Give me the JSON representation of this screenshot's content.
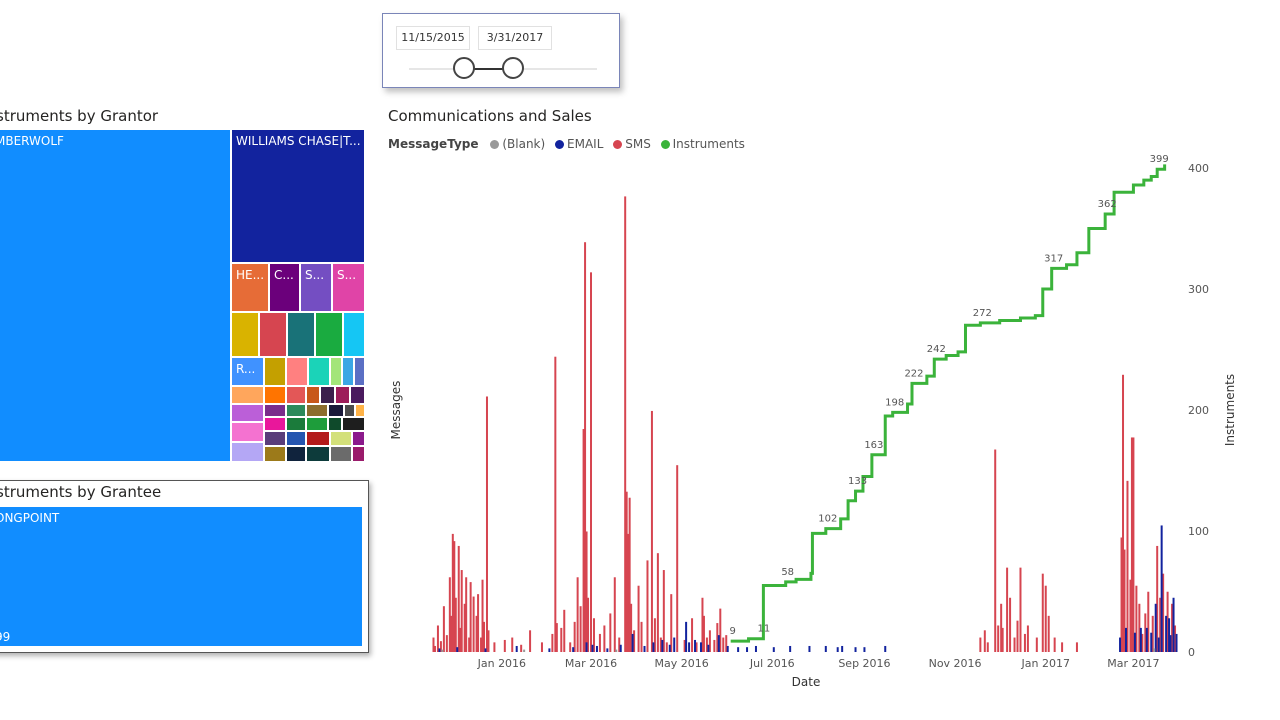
{
  "slicer": {
    "start_date": "11/15/2015",
    "end_date": "3/31/2017"
  },
  "grantor_treemap": {
    "title": "struments by Grantor",
    "labels": {
      "main": "MBERWOLF",
      "second": "WILLIAMS CHASE|T...",
      "a": "HE...",
      "b": "C...",
      "c": "S...",
      "d": "S...",
      "e": "R..."
    },
    "colors": {
      "main": "#118dff",
      "second": "#12239e"
    }
  },
  "grantee_treemap": {
    "title": "struments by Grantee",
    "main_label": "ONGPOINT",
    "value_label": "99",
    "color": "#118dff"
  },
  "chart_data": {
    "type": "bar",
    "title": "Communications and Sales",
    "legend": {
      "title": "MessageType",
      "position": "top-left",
      "entries": [
        {
          "name": "(Blank)",
          "color": "#999999"
        },
        {
          "name": "EMAIL",
          "color": "#12239e"
        },
        {
          "name": "SMS",
          "color": "#d64550"
        },
        {
          "name": "Instruments",
          "color": "#3bb33b"
        }
      ]
    },
    "xlabel": "Date",
    "ylabel_left": "Messages",
    "ylabel_right": "Instruments",
    "x_ticks": [
      "Jan 2016",
      "Mar 2016",
      "May 2016",
      "Jul 2016",
      "Sep 2016",
      "Nov 2016",
      "Jan 2017",
      "Mar 2017"
    ],
    "x_range": [
      "2015-11-15",
      "2017-03-31"
    ],
    "y_right_ticks": [
      "0",
      "100",
      "200",
      "300",
      "400"
    ],
    "y_right_range": [
      0,
      400
    ],
    "y_left_range": [
      0,
      380
    ],
    "sms_series": [
      [
        "2015-11-16",
        12
      ],
      [
        "2015-11-17",
        5
      ],
      [
        "2015-11-19",
        22
      ],
      [
        "2015-11-21",
        9
      ],
      [
        "2015-11-23",
        38
      ],
      [
        "2015-11-25",
        14
      ],
      [
        "2015-11-27",
        62
      ],
      [
        "2015-11-28",
        30
      ],
      [
        "2015-11-29",
        98
      ],
      [
        "2015-11-30",
        92
      ],
      [
        "2015-12-01",
        45
      ],
      [
        "2015-12-03",
        88
      ],
      [
        "2015-12-04",
        20
      ],
      [
        "2015-12-05",
        68
      ],
      [
        "2015-12-07",
        40
      ],
      [
        "2015-12-08",
        62
      ],
      [
        "2015-12-10",
        12
      ],
      [
        "2015-12-11",
        58
      ],
      [
        "2015-12-13",
        46
      ],
      [
        "2015-12-15",
        30
      ],
      [
        "2015-12-16",
        48
      ],
      [
        "2015-12-18",
        12
      ],
      [
        "2015-12-19",
        60
      ],
      [
        "2015-12-20",
        25
      ],
      [
        "2015-12-22",
        212
      ],
      [
        "2015-12-23",
        18
      ],
      [
        "2015-12-27",
        8
      ],
      [
        "2016-01-03",
        10
      ],
      [
        "2016-01-08",
        12
      ],
      [
        "2016-01-14",
        6
      ],
      [
        "2016-01-20",
        18
      ],
      [
        "2016-01-28",
        8
      ],
      [
        "2016-02-04",
        15
      ],
      [
        "2016-02-06",
        245
      ],
      [
        "2016-02-07",
        24
      ],
      [
        "2016-02-10",
        20
      ],
      [
        "2016-02-12",
        35
      ],
      [
        "2016-02-16",
        8
      ],
      [
        "2016-02-19",
        25
      ],
      [
        "2016-02-21",
        62
      ],
      [
        "2016-02-23",
        38
      ],
      [
        "2016-02-25",
        185
      ],
      [
        "2016-02-26",
        340
      ],
      [
        "2016-02-27",
        100
      ],
      [
        "2016-02-28",
        45
      ],
      [
        "2016-03-01",
        315
      ],
      [
        "2016-03-03",
        28
      ],
      [
        "2016-03-07",
        15
      ],
      [
        "2016-03-10",
        22
      ],
      [
        "2016-03-14",
        32
      ],
      [
        "2016-03-17",
        62
      ],
      [
        "2016-03-20",
        12
      ],
      [
        "2016-03-24",
        378
      ],
      [
        "2016-03-25",
        133
      ],
      [
        "2016-03-26",
        98
      ],
      [
        "2016-03-27",
        128
      ],
      [
        "2016-03-28",
        40
      ],
      [
        "2016-03-30",
        18
      ],
      [
        "2016-04-02",
        55
      ],
      [
        "2016-04-04",
        25
      ],
      [
        "2016-04-08",
        76
      ],
      [
        "2016-04-11",
        200
      ],
      [
        "2016-04-13",
        28
      ],
      [
        "2016-04-15",
        82
      ],
      [
        "2016-04-17",
        12
      ],
      [
        "2016-04-19",
        68
      ],
      [
        "2016-04-21",
        8
      ],
      [
        "2016-04-24",
        48
      ],
      [
        "2016-04-28",
        155
      ],
      [
        "2016-05-03",
        10
      ],
      [
        "2016-05-08",
        28
      ],
      [
        "2016-05-11",
        8
      ],
      [
        "2016-05-15",
        45
      ],
      [
        "2016-05-16",
        30
      ],
      [
        "2016-05-18",
        12
      ],
      [
        "2016-05-20",
        18
      ],
      [
        "2016-05-23",
        10
      ],
      [
        "2016-05-25",
        24
      ],
      [
        "2016-05-27",
        36
      ],
      [
        "2016-05-29",
        12
      ],
      [
        "2016-05-31",
        14
      ],
      [
        "2016-11-18",
        12
      ],
      [
        "2016-11-21",
        18
      ],
      [
        "2016-11-23",
        8
      ],
      [
        "2016-11-28",
        168
      ],
      [
        "2016-11-30",
        22
      ],
      [
        "2016-12-02",
        40
      ],
      [
        "2016-12-03",
        20
      ],
      [
        "2016-12-06",
        70
      ],
      [
        "2016-12-08",
        45
      ],
      [
        "2016-12-11",
        12
      ],
      [
        "2016-12-13",
        26
      ],
      [
        "2016-12-15",
        70
      ],
      [
        "2016-12-18",
        15
      ],
      [
        "2016-12-20",
        22
      ],
      [
        "2016-12-26",
        12
      ],
      [
        "2016-12-30",
        65
      ],
      [
        "2017-01-01",
        55
      ],
      [
        "2017-01-03",
        30
      ],
      [
        "2017-01-07",
        12
      ],
      [
        "2017-01-12",
        8
      ],
      [
        "2017-01-22",
        8
      ],
      [
        "2017-02-21",
        95
      ],
      [
        "2017-02-22",
        230
      ],
      [
        "2017-02-23",
        85
      ],
      [
        "2017-02-25",
        142
      ],
      [
        "2017-02-27",
        60
      ],
      [
        "2017-02-28",
        178
      ],
      [
        "2017-03-01",
        178
      ],
      [
        "2017-03-03",
        55
      ],
      [
        "2017-03-05",
        40
      ],
      [
        "2017-03-07",
        15
      ],
      [
        "2017-03-09",
        32
      ],
      [
        "2017-03-11",
        50
      ],
      [
        "2017-03-14",
        30
      ],
      [
        "2017-03-17",
        88
      ],
      [
        "2017-03-19",
        45
      ],
      [
        "2017-03-21",
        65
      ],
      [
        "2017-03-24",
        50
      ],
      [
        "2017-03-27",
        40
      ],
      [
        "2017-03-29",
        22
      ]
    ],
    "email_series": [
      [
        "2015-11-20",
        3
      ],
      [
        "2015-12-02",
        4
      ],
      [
        "2015-12-21",
        3
      ],
      [
        "2016-01-11",
        5
      ],
      [
        "2016-02-02",
        3
      ],
      [
        "2016-02-18",
        4
      ],
      [
        "2016-02-27",
        8
      ],
      [
        "2016-03-02",
        6
      ],
      [
        "2016-03-05",
        5
      ],
      [
        "2016-03-12",
        3
      ],
      [
        "2016-03-21",
        6
      ],
      [
        "2016-03-29",
        15
      ],
      [
        "2016-04-06",
        5
      ],
      [
        "2016-04-12",
        8
      ],
      [
        "2016-04-18",
        10
      ],
      [
        "2016-04-23",
        6
      ],
      [
        "2016-04-26",
        12
      ],
      [
        "2016-05-04",
        25
      ],
      [
        "2016-05-06",
        8
      ],
      [
        "2016-05-10",
        10
      ],
      [
        "2016-05-14",
        8
      ],
      [
        "2016-05-19",
        6
      ],
      [
        "2016-05-26",
        14
      ],
      [
        "2016-06-01",
        5
      ],
      [
        "2016-06-08",
        4
      ],
      [
        "2016-06-14",
        4
      ],
      [
        "2016-06-20",
        5
      ],
      [
        "2016-07-02",
        4
      ],
      [
        "2016-07-13",
        5
      ],
      [
        "2016-07-26",
        5
      ],
      [
        "2016-08-06",
        5
      ],
      [
        "2016-08-14",
        4
      ],
      [
        "2016-08-17",
        5
      ],
      [
        "2016-08-26",
        4
      ],
      [
        "2016-09-01",
        4
      ],
      [
        "2016-09-15",
        5
      ],
      [
        "2017-02-20",
        12
      ],
      [
        "2017-02-24",
        20
      ],
      [
        "2017-03-02",
        16
      ],
      [
        "2017-03-06",
        20
      ],
      [
        "2017-03-10",
        20
      ],
      [
        "2017-03-13",
        16
      ],
      [
        "2017-03-16",
        40
      ],
      [
        "2017-03-18",
        12
      ],
      [
        "2017-03-20",
        105
      ],
      [
        "2017-03-23",
        30
      ],
      [
        "2017-03-25",
        28
      ],
      [
        "2017-03-26",
        14
      ],
      [
        "2017-03-28",
        45
      ],
      [
        "2017-03-30",
        15
      ]
    ],
    "blank_series": [
      [
        "2015-11-22",
        2
      ],
      [
        "2016-01-16",
        2
      ],
      [
        "2016-03-18",
        2
      ],
      [
        "2017-03-15",
        3
      ]
    ],
    "instruments_series": [
      [
        "2016-06-03",
        9
      ],
      [
        "2016-06-15",
        11
      ],
      [
        "2016-06-24",
        11
      ],
      [
        "2016-06-25",
        55
      ],
      [
        "2016-07-10",
        58
      ],
      [
        "2016-07-17",
        60
      ],
      [
        "2016-07-27",
        65
      ],
      [
        "2016-07-28",
        98
      ],
      [
        "2016-08-06",
        102
      ],
      [
        "2016-08-16",
        110
      ],
      [
        "2016-08-21",
        125
      ],
      [
        "2016-08-26",
        133
      ],
      [
        "2016-08-31",
        145
      ],
      [
        "2016-09-06",
        163
      ],
      [
        "2016-09-15",
        195
      ],
      [
        "2016-09-20",
        198
      ],
      [
        "2016-09-30",
        205
      ],
      [
        "2016-10-03",
        222
      ],
      [
        "2016-10-13",
        228
      ],
      [
        "2016-10-18",
        242
      ],
      [
        "2016-10-26",
        245
      ],
      [
        "2016-11-03",
        248
      ],
      [
        "2016-11-08",
        270
      ],
      [
        "2016-11-18",
        272
      ],
      [
        "2016-12-01",
        274
      ],
      [
        "2016-12-15",
        276
      ],
      [
        "2016-12-25",
        278
      ],
      [
        "2016-12-30",
        300
      ],
      [
        "2017-01-05",
        317
      ],
      [
        "2017-01-15",
        320
      ],
      [
        "2017-01-22",
        330
      ],
      [
        "2017-01-30",
        350
      ],
      [
        "2017-02-10",
        362
      ],
      [
        "2017-02-16",
        380
      ],
      [
        "2017-03-01",
        386
      ],
      [
        "2017-03-08",
        390
      ],
      [
        "2017-03-13",
        393
      ],
      [
        "2017-03-17",
        399
      ],
      [
        "2017-03-22",
        403
      ]
    ],
    "instrument_labels": [
      [
        "2016-06-03",
        9,
        "9"
      ],
      [
        "2016-06-24",
        11,
        "11"
      ],
      [
        "2016-07-10",
        58,
        "58"
      ],
      [
        "2016-08-06",
        102,
        "102"
      ],
      [
        "2016-08-26",
        133,
        "133"
      ],
      [
        "2016-09-06",
        163,
        "163"
      ],
      [
        "2016-09-20",
        198,
        "198"
      ],
      [
        "2016-10-03",
        222,
        "222"
      ],
      [
        "2016-10-18",
        242,
        "242"
      ],
      [
        "2016-11-18",
        272,
        "272"
      ],
      [
        "2017-01-05",
        317,
        "317"
      ],
      [
        "2017-02-10",
        362,
        "362"
      ],
      [
        "2017-03-17",
        399,
        "399"
      ]
    ]
  }
}
